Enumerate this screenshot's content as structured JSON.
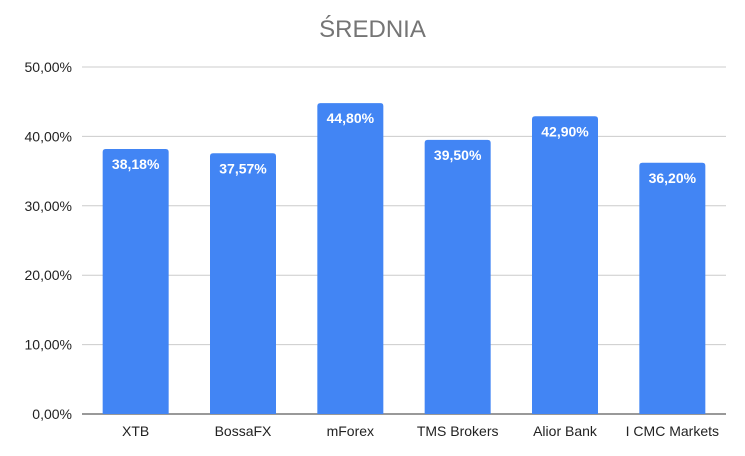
{
  "chart_data": {
    "type": "bar",
    "title": "ŚREDNIA",
    "categories": [
      "XTB",
      "BossaFX",
      "mForex",
      "TMS Brokers",
      "Alior Bank",
      "I CMC Markets"
    ],
    "values": [
      38.18,
      37.57,
      44.8,
      39.5,
      42.9,
      36.2
    ],
    "value_labels": [
      "38,18%",
      "37,57%",
      "44,80%",
      "39,50%",
      "42,90%",
      "36,20%"
    ],
    "ylim": [
      0,
      50
    ],
    "yticks": [
      0,
      10,
      20,
      30,
      40,
      50
    ],
    "ytick_labels": [
      "0,00%",
      "10,00%",
      "20,00%",
      "30,00%",
      "40,00%",
      "50,00%"
    ],
    "xlabel": "",
    "ylabel": "",
    "grid": true,
    "legend": "none",
    "bar_color": "#4285f4",
    "grid_color": "#cccccc",
    "axis_color": "#333333"
  }
}
